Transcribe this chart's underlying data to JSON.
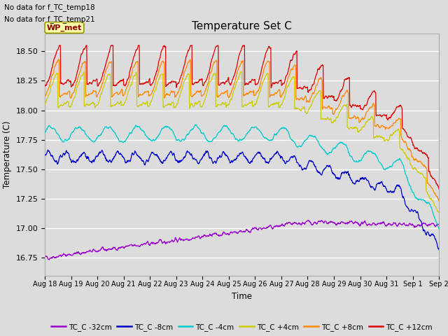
{
  "title": "Temperature Set C",
  "xlabel": "Time",
  "ylabel": "Temperature (C)",
  "ylim": [
    16.6,
    18.65
  ],
  "text_lines": [
    "No data for f_TC_temp18",
    "No data for f_TC_temp21"
  ],
  "wp_met_label": "WP_met",
  "bg_color": "#dcdcdc",
  "plot_bg_color": "#dcdcdc",
  "grid_color": "white",
  "series": [
    {
      "label": "TC_C -32cm",
      "color": "#9900cc"
    },
    {
      "label": "TC_C -8cm",
      "color": "#0000cc"
    },
    {
      "label": "TC_C -4cm",
      "color": "#00cccc"
    },
    {
      "label": "TC_C +4cm",
      "color": "#cccc00"
    },
    {
      "label": "TC_C +8cm",
      "color": "#ff8800"
    },
    {
      "label": "TC_C +12cm",
      "color": "#dd0000"
    }
  ],
  "x_tick_labels": [
    "Aug 18",
    "Aug 19",
    "Aug 20",
    "Aug 21",
    "Aug 22",
    "Aug 23",
    "Aug 24",
    "Aug 25",
    "Aug 26",
    "Aug 27",
    "Aug 28",
    "Aug 29",
    "Aug 30",
    "Aug 31",
    "Sep 1",
    "Sep 2"
  ],
  "n_points": 1440,
  "figsize": [
    6.4,
    4.8
  ],
  "dpi": 100
}
